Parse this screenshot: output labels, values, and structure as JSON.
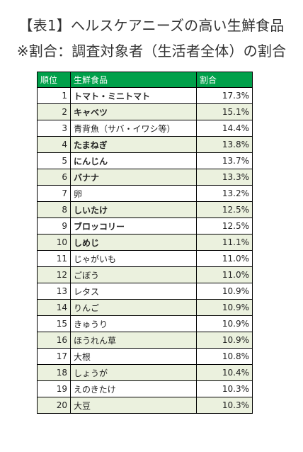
{
  "header": {
    "title": "【表1】ヘルスケアニーズの高い生鮮食品",
    "subtitle": "※割合：調査対象者（生活者全体）の割合"
  },
  "table": {
    "columns": [
      "順位",
      "生鮮食品",
      "割合"
    ],
    "rows": [
      {
        "rank": "1",
        "item": "トマト・ミニトマト",
        "share": "17.3%",
        "bold": true,
        "shaded": false
      },
      {
        "rank": "2",
        "item": "キャベツ",
        "share": "15.1%",
        "bold": true,
        "shaded": true
      },
      {
        "rank": "3",
        "item": "青背魚（サバ・イワシ等）",
        "share": "14.4%",
        "bold": false,
        "shaded": false
      },
      {
        "rank": "4",
        "item": "たまねぎ",
        "share": "13.8%",
        "bold": true,
        "shaded": true
      },
      {
        "rank": "5",
        "item": "にんじん",
        "share": "13.7%",
        "bold": true,
        "shaded": false
      },
      {
        "rank": "6",
        "item": "バナナ",
        "share": "13.3%",
        "bold": true,
        "shaded": true
      },
      {
        "rank": "7",
        "item": "卵",
        "share": "13.2%",
        "bold": false,
        "shaded": false
      },
      {
        "rank": "8",
        "item": "しいたけ",
        "share": "12.5%",
        "bold": true,
        "shaded": true
      },
      {
        "rank": "9",
        "item": "ブロッコリー",
        "share": "12.5%",
        "bold": true,
        "shaded": false
      },
      {
        "rank": "10",
        "item": "しめじ",
        "share": "11.1%",
        "bold": true,
        "shaded": true
      },
      {
        "rank": "11",
        "item": "じゃがいも",
        "share": "11.0%",
        "bold": false,
        "shaded": false
      },
      {
        "rank": "12",
        "item": "ごぼう",
        "share": "11.0%",
        "bold": false,
        "shaded": true
      },
      {
        "rank": "13",
        "item": "レタス",
        "share": "10.9%",
        "bold": false,
        "shaded": false
      },
      {
        "rank": "14",
        "item": "りんご",
        "share": "10.9%",
        "bold": false,
        "shaded": true
      },
      {
        "rank": "15",
        "item": "きゅうり",
        "share": "10.9%",
        "bold": false,
        "shaded": false
      },
      {
        "rank": "16",
        "item": "ほうれん草",
        "share": "10.9%",
        "bold": false,
        "shaded": true
      },
      {
        "rank": "17",
        "item": "大根",
        "share": "10.8%",
        "bold": false,
        "shaded": false
      },
      {
        "rank": "18",
        "item": "しょうが",
        "share": "10.4%",
        "bold": false,
        "shaded": true
      },
      {
        "rank": "19",
        "item": "えのきたけ",
        "share": "10.3%",
        "bold": false,
        "shaded": false
      },
      {
        "rank": "20",
        "item": "大豆",
        "share": "10.3%",
        "bold": false,
        "shaded": true
      }
    ]
  },
  "colors": {
    "header_bg": "#00a04a",
    "header_text": "#ffffff",
    "shaded_row": "#ebf1de",
    "border": "#000000"
  }
}
